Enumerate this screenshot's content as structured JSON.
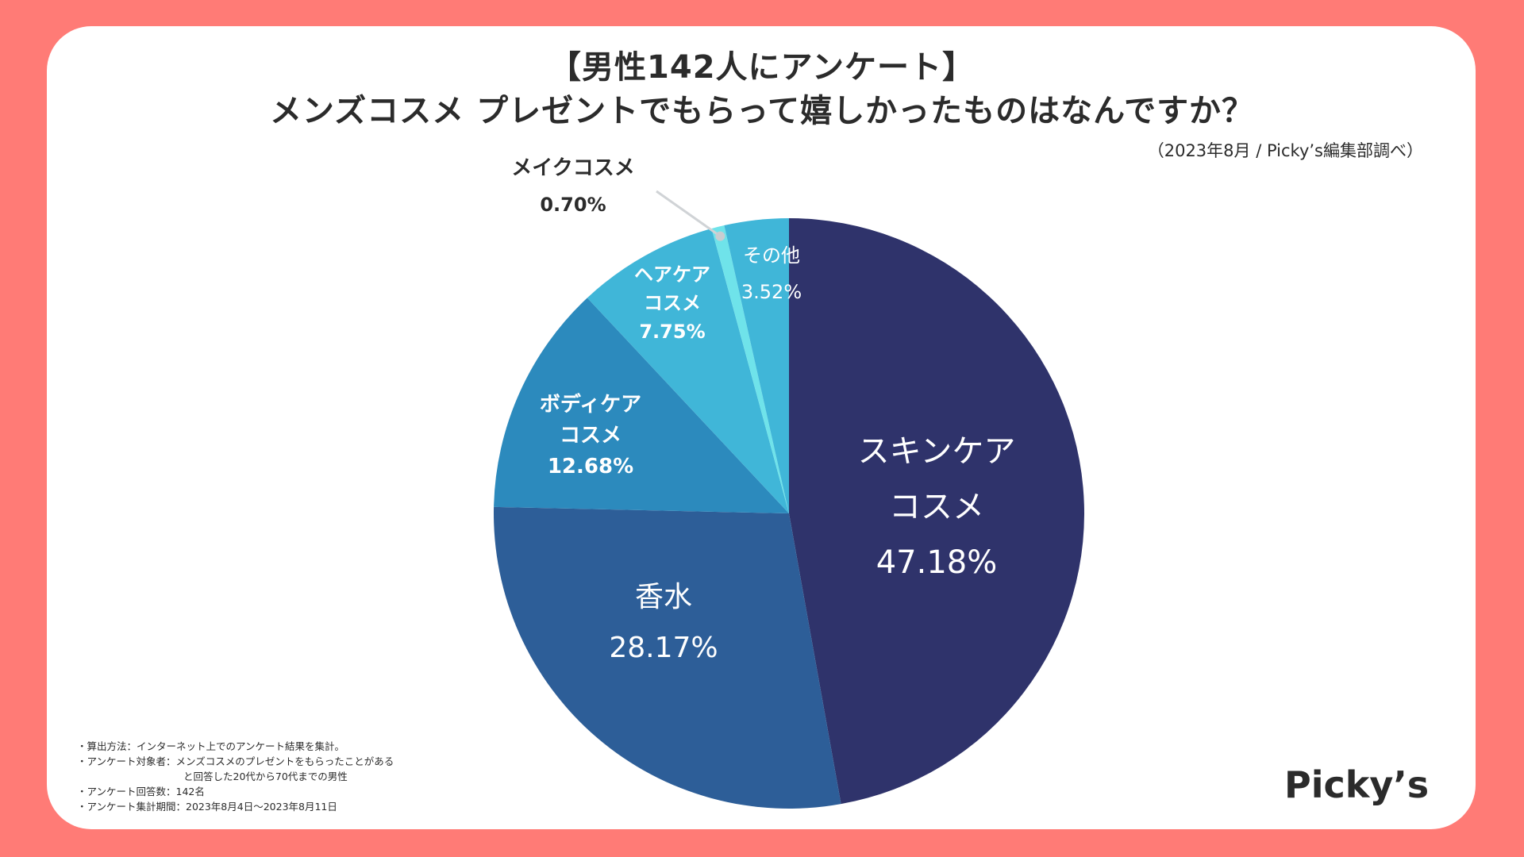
{
  "header": {
    "title_line1": "【男性142人にアンケート】",
    "title_line2": "メンズコスメ プレゼントでもらって嬉しかったものはなんですか？",
    "source": "（2023年8月 / Picky’s編集部調べ）"
  },
  "chart_data": {
    "type": "pie",
    "title": "メンズコスメ プレゼントでもらって嬉しかったものはなんですか？",
    "unit": "%",
    "start_angle_deg": 0,
    "direction": "clockwise",
    "slices": [
      {
        "id": "skincare",
        "label_lines": [
          "スキンケア",
          "コスメ"
        ],
        "value": 47.18,
        "value_label": "47.18%",
        "color": "#2F336B",
        "label_color": "#FFFFFF"
      },
      {
        "id": "perfume",
        "label_lines": [
          "香水"
        ],
        "value": 28.17,
        "value_label": "28.17%",
        "color": "#2D5E98",
        "label_color": "#FFFFFF"
      },
      {
        "id": "bodycare",
        "label_lines": [
          "ボディケア",
          "コスメ"
        ],
        "value": 12.68,
        "value_label": "12.68%",
        "color": "#2C8ABD",
        "label_color": "#FFFFFF"
      },
      {
        "id": "haircare",
        "label_lines": [
          "ヘアケア",
          "コスメ"
        ],
        "value": 7.75,
        "value_label": "7.75%",
        "color": "#40B6D8",
        "label_color": "#FFFFFF"
      },
      {
        "id": "makeup",
        "label_lines": [
          "メイクコスメ"
        ],
        "value": 0.7,
        "value_label": "0.70%",
        "color": "#6FE3EA",
        "label_color": "#2b2b2b",
        "outside": true
      },
      {
        "id": "other",
        "label_lines": [
          "その他"
        ],
        "value": 3.52,
        "value_label": "3.52%",
        "color": "#40B6D8",
        "label_color": "#FFFFFF"
      }
    ]
  },
  "notes": {
    "line1": "・算出方法：インターネット上でのアンケート結果を集計。",
    "line2": "・アンケート対象者：メンズコスメのプレゼントをもらったことがある",
    "line3": "と回答した20代から70代までの男性",
    "line4": "・アンケート回答数：142名",
    "line5": "・アンケート集計期間：2023年8月4日〜2023年8月11日"
  },
  "logo": {
    "text": "Picky’s"
  }
}
